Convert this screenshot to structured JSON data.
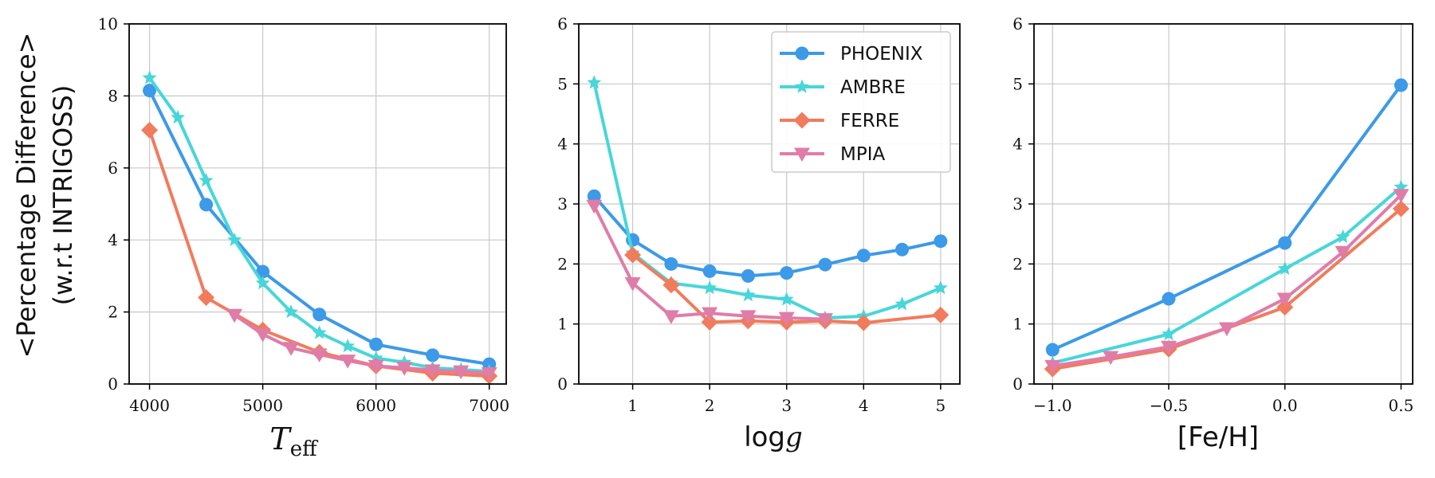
{
  "figure": {
    "ylabel_line1": "<Percentage Difference>",
    "ylabel_line2": "(w.r.t INTRIGOSS)"
  },
  "colors": {
    "PHOENIX": "#3c9ae8",
    "AMBRE": "#48d6d9",
    "FERRE": "#f07c5d",
    "MPIA": "#e07ca8"
  },
  "legend": [
    "PHOENIX",
    "AMBRE",
    "FERRE",
    "MPIA"
  ],
  "chart_data": [
    {
      "type": "line",
      "id": "teff",
      "title": "",
      "xlabel_main": "T",
      "xlabel_sub": "eff",
      "ylabel": "<Percentage Difference> (w.r.t INTRIGOSS)",
      "xlim": [
        3820,
        7150
      ],
      "ylim": [
        0,
        10
      ],
      "xticks": [
        4000,
        5000,
        6000,
        7000
      ],
      "yticks": [
        0,
        2,
        4,
        6,
        8,
        10
      ],
      "xtick_labels": [
        "4000",
        "5000",
        "6000",
        "7000"
      ],
      "ytick_labels": [
        "0",
        "2",
        "4",
        "6",
        "8",
        "10"
      ],
      "grid": true,
      "series": [
        {
          "name": "PHOENIX",
          "marker": "circle",
          "x": [
            4000,
            4500,
            5000,
            5500,
            6000,
            6500,
            7000
          ],
          "y": [
            8.15,
            4.98,
            3.12,
            1.93,
            1.1,
            0.8,
            0.55
          ]
        },
        {
          "name": "AMBRE",
          "marker": "star",
          "x": [
            4000,
            4250,
            4500,
            4750,
            5000,
            5250,
            5500,
            5750,
            6000,
            6250,
            6500,
            6750,
            7000
          ],
          "y": [
            8.5,
            7.4,
            5.65,
            4.0,
            2.8,
            2.0,
            1.42,
            1.05,
            0.72,
            0.6,
            0.45,
            0.4,
            0.35
          ]
        },
        {
          "name": "FERRE",
          "marker": "diamond",
          "x": [
            4000,
            4500,
            5000,
            5500,
            6000,
            6500,
            7000
          ],
          "y": [
            7.05,
            2.4,
            1.5,
            0.88,
            0.5,
            0.3,
            0.22
          ]
        },
        {
          "name": "MPIA",
          "marker": "triangle-down",
          "x": [
            4750,
            5000,
            5250,
            5500,
            5750,
            6000,
            6250,
            6500,
            6750,
            7000
          ],
          "y": [
            1.92,
            1.38,
            1.0,
            0.82,
            0.65,
            0.5,
            0.45,
            0.38,
            0.35,
            0.3
          ]
        }
      ]
    },
    {
      "type": "line",
      "id": "logg",
      "title": "",
      "xlabel": "log",
      "xlabel_var": "g",
      "xlim": [
        0.3,
        5.25
      ],
      "ylim": [
        0,
        6
      ],
      "xticks": [
        1,
        2,
        3,
        4,
        5
      ],
      "yticks": [
        0,
        1,
        2,
        3,
        4,
        5,
        6
      ],
      "xtick_labels": [
        "1",
        "2",
        "3",
        "4",
        "5"
      ],
      "ytick_labels": [
        "0",
        "1",
        "2",
        "3",
        "4",
        "5",
        "6"
      ],
      "grid": true,
      "legend_position": "top-right",
      "series": [
        {
          "name": "PHOENIX",
          "marker": "circle",
          "x": [
            0.5,
            1.0,
            1.5,
            2.0,
            2.5,
            3.0,
            3.5,
            4.0,
            4.5,
            5.0
          ],
          "y": [
            3.13,
            2.4,
            2.0,
            1.88,
            1.8,
            1.85,
            1.99,
            2.14,
            2.24,
            2.38
          ]
        },
        {
          "name": "AMBRE",
          "marker": "star",
          "x": [
            0.5,
            1.0,
            1.5,
            2.0,
            2.5,
            3.0,
            3.5,
            4.0,
            4.5,
            5.0
          ],
          "y": [
            5.02,
            2.18,
            1.68,
            1.6,
            1.48,
            1.41,
            1.1,
            1.13,
            1.33,
            1.6
          ]
        },
        {
          "name": "FERRE",
          "marker": "diamond",
          "x": [
            1.0,
            1.5,
            2.0,
            2.5,
            3.0,
            3.5,
            4.0,
            5.0
          ],
          "y": [
            2.15,
            1.65,
            1.03,
            1.05,
            1.03,
            1.05,
            1.02,
            1.15
          ]
        },
        {
          "name": "MPIA",
          "marker": "triangle-down",
          "x": [
            0.5,
            1.0,
            1.5,
            2.0,
            2.5,
            3.0,
            3.5
          ],
          "y": [
            2.97,
            1.68,
            1.13,
            1.18,
            1.13,
            1.1,
            1.08
          ]
        }
      ]
    },
    {
      "type": "line",
      "id": "feh",
      "title": "",
      "xlabel": "[Fe/H]",
      "xlim": [
        -1.08,
        0.55
      ],
      "ylim": [
        0,
        6
      ],
      "xticks": [
        -1.0,
        -0.5,
        0.0,
        0.5
      ],
      "yticks": [
        0,
        1,
        2,
        3,
        4,
        5,
        6
      ],
      "xtick_labels": [
        "−1.0",
        "−0.5",
        "0.0",
        "0.5"
      ],
      "ytick_labels": [
        "0",
        "1",
        "2",
        "3",
        "4",
        "5",
        "6"
      ],
      "grid": true,
      "series": [
        {
          "name": "PHOENIX",
          "marker": "circle",
          "x": [
            -1.0,
            -0.5,
            0.0,
            0.5
          ],
          "y": [
            0.57,
            1.42,
            2.35,
            4.98
          ]
        },
        {
          "name": "AMBRE",
          "marker": "star",
          "x": [
            -1.0,
            -0.5,
            0.0,
            0.25,
            0.5
          ],
          "y": [
            0.35,
            0.83,
            1.92,
            2.45,
            3.28
          ]
        },
        {
          "name": "FERRE",
          "marker": "diamond",
          "x": [
            -1.0,
            -0.5,
            0.0,
            0.5
          ],
          "y": [
            0.25,
            0.58,
            1.28,
            2.92
          ]
        },
        {
          "name": "MPIA",
          "marker": "triangle-down",
          "x": [
            -1.0,
            -0.75,
            -0.5,
            -0.25,
            0.0,
            0.25,
            0.5
          ],
          "y": [
            0.3,
            0.45,
            0.62,
            0.93,
            1.42,
            2.2,
            3.15
          ]
        }
      ]
    }
  ]
}
